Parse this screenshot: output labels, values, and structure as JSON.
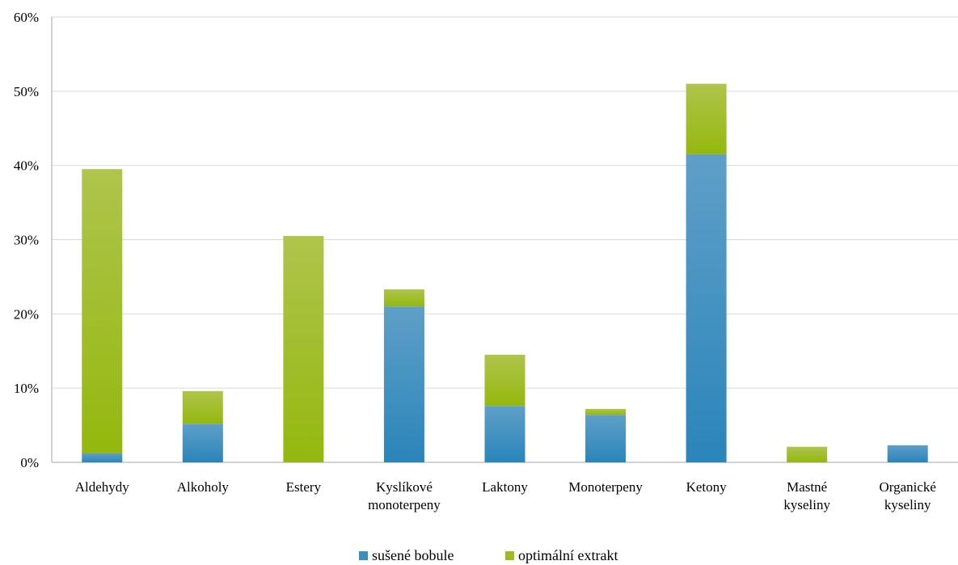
{
  "chart_data": {
    "type": "bar",
    "stacked": true,
    "categories": [
      [
        "Aldehydy"
      ],
      [
        "Alkoholy"
      ],
      [
        "Estery"
      ],
      [
        "Kyslíkové",
        "monoterpeny"
      ],
      [
        "Laktony"
      ],
      [
        "Monoterpeny"
      ],
      [
        "Ketony"
      ],
      [
        "Mastné",
        "kyseliny"
      ],
      [
        "Organické",
        "kyseliny"
      ]
    ],
    "series": [
      {
        "name": "sušené bobule",
        "color": "#3a8fbf",
        "values": [
          1.2,
          5.2,
          0,
          21.0,
          7.6,
          6.4,
          41.5,
          0,
          2.3
        ]
      },
      {
        "name": "optimální extrakt",
        "color": "#9bbd1f",
        "values": [
          38.3,
          4.4,
          30.5,
          2.3,
          6.9,
          0.8,
          9.5,
          2.1,
          0
        ]
      }
    ],
    "yticks": [
      "0%",
      "10%",
      "20%",
      "30%",
      "40%",
      "50%",
      "60%"
    ],
    "ylim": [
      0,
      60
    ],
    "grid": true,
    "legend_position": "bottom"
  }
}
